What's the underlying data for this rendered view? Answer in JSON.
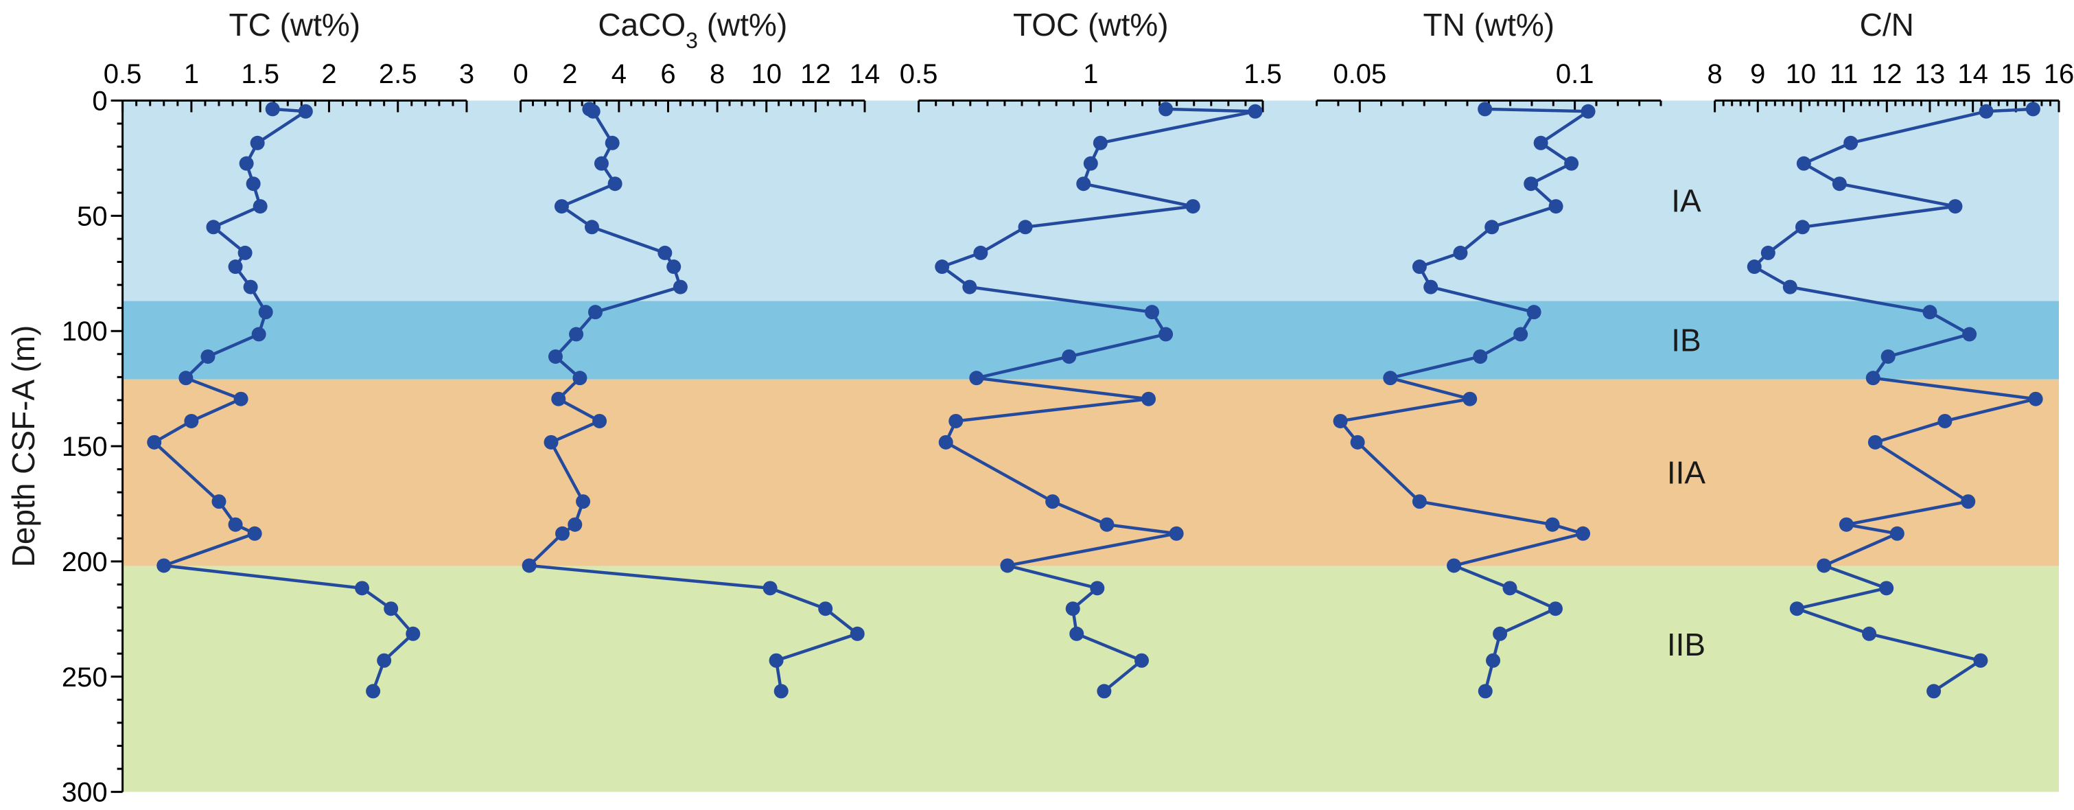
{
  "chart_data": {
    "type": "line",
    "orientation": "depth-profile",
    "ylabel": "Depth CSF-A (m)",
    "ylim": [
      0,
      300
    ],
    "y_reversed": true,
    "y_ticks": [
      0,
      50,
      100,
      150,
      200,
      250,
      300
    ],
    "y_tick_labels": [
      "0",
      "50",
      "100",
      "150",
      "200",
      "250",
      "300"
    ],
    "y_minor_step": 10,
    "grid": false,
    "colors": {
      "line": "#244a9e",
      "marker": "#244a9e"
    },
    "zones": [
      {
        "label": "IA",
        "top": 0,
        "bottom": 87,
        "color": "#c5e2f0"
      },
      {
        "label": "IB",
        "top": 87,
        "bottom": 121,
        "color": "#7fc4e1"
      },
      {
        "label": "IIA",
        "top": 121,
        "bottom": 202,
        "color": "#f0c893"
      },
      {
        "label": "IIB",
        "top": 202,
        "bottom": 300,
        "color": "#d7e8b1"
      }
    ],
    "depth": [
      3.7,
      4.7,
      18.4,
      27.3,
      36.1,
      45.9,
      54.9,
      66.1,
      72.1,
      80.9,
      91.8,
      101.4,
      111.1,
      120.4,
      129.5,
      139.1,
      148.3,
      174.0,
      184.0,
      187.9,
      201.8,
      211.6,
      220.5,
      231.4,
      243.0,
      256.3
    ],
    "panels": [
      {
        "title": "TC (wt%)",
        "title_main": "TC (wt%)",
        "title_sub": "",
        "title_tail": "",
        "xlim": [
          0.5,
          3
        ],
        "ticks": [
          0.5,
          1,
          1.5,
          2,
          2.5,
          3
        ],
        "tick_labels": [
          "0.5",
          "1",
          "1.5",
          "2",
          "2.5",
          "3"
        ],
        "minor_step": 0.1,
        "values": [
          1.59,
          1.83,
          1.48,
          1.4,
          1.45,
          1.5,
          1.16,
          1.39,
          1.32,
          1.43,
          1.54,
          1.49,
          1.12,
          0.96,
          1.36,
          1.0,
          0.73,
          1.2,
          1.32,
          1.46,
          0.8,
          2.24,
          2.45,
          2.61,
          2.4,
          2.32
        ]
      },
      {
        "title": "CaCO3 (wt%)",
        "title_main": "CaCO",
        "title_sub": "3",
        "title_tail": " (wt%)",
        "xlim": [
          0,
          14
        ],
        "ticks": [
          0,
          2,
          4,
          6,
          8,
          10,
          12,
          14
        ],
        "tick_labels": [
          "0",
          "2",
          "4",
          "6",
          "8",
          "10",
          "12",
          "14"
        ],
        "minor_step": 0.5,
        "values": [
          2.8,
          2.95,
          3.73,
          3.29,
          3.84,
          1.67,
          2.9,
          5.87,
          6.23,
          6.5,
          3.04,
          2.26,
          1.42,
          2.41,
          1.54,
          3.21,
          1.24,
          2.54,
          2.21,
          1.7,
          0.35,
          10.15,
          12.4,
          13.7,
          10.4,
          10.6
        ]
      },
      {
        "title": "TOC (wt%)",
        "title_main": "TOC (wt%)",
        "title_sub": "",
        "title_tail": "",
        "xlim": [
          0.5,
          1.5
        ],
        "ticks": [
          0.5,
          1,
          1.5
        ],
        "tick_labels": [
          "0.5",
          "1",
          "1.5"
        ],
        "minor_step": 0.05,
        "values": [
          1.218,
          1.478,
          1.028,
          1.0,
          0.979,
          1.297,
          0.81,
          0.68,
          0.568,
          0.648,
          1.178,
          1.218,
          0.937,
          0.668,
          1.168,
          0.608,
          0.579,
          0.889,
          1.047,
          1.249,
          0.758,
          1.019,
          0.948,
          0.959,
          1.148,
          1.039
        ]
      },
      {
        "title": "TN (wt%)",
        "title_main": "TN (wt%)",
        "title_sub": "",
        "title_tail": "",
        "xlim": [
          0.04,
          0.12
        ],
        "ticks": [
          0.05,
          0.1
        ],
        "tick_labels": [
          "0.05",
          "0.1"
        ],
        "minor_step": 0.005,
        "values": [
          0.0791,
          0.1031,
          0.0921,
          0.0992,
          0.0898,
          0.0956,
          0.0807,
          0.0734,
          0.0639,
          0.0665,
          0.0905,
          0.0874,
          0.078,
          0.0571,
          0.0756,
          0.0455,
          0.0495,
          0.0639,
          0.0948,
          0.1019,
          0.0719,
          0.0849,
          0.0955,
          0.0826,
          0.081,
          0.0792
        ]
      },
      {
        "title": "C/N",
        "title_main": "C/N",
        "title_sub": "",
        "title_tail": "",
        "xlim": [
          8,
          16
        ],
        "ticks": [
          8,
          9,
          10,
          11,
          12,
          13,
          14,
          15,
          16
        ],
        "tick_labels": [
          "8",
          "9",
          "10",
          "11",
          "12",
          "13",
          "14",
          "15",
          "16"
        ],
        "minor_step": 0.2,
        "values": [
          15.4,
          14.31,
          11.16,
          10.07,
          10.9,
          13.59,
          10.04,
          9.24,
          8.92,
          9.75,
          13.0,
          13.92,
          12.03,
          11.68,
          15.46,
          13.35,
          11.73,
          13.89,
          11.06,
          12.24,
          10.54,
          11.99,
          9.91,
          11.59,
          14.18,
          13.09
        ]
      }
    ]
  }
}
